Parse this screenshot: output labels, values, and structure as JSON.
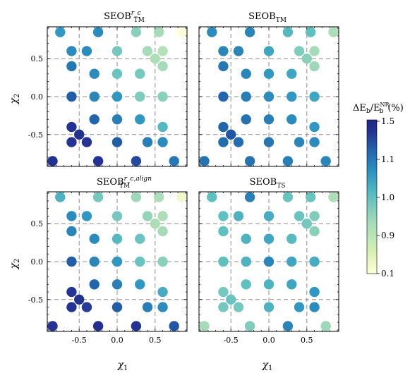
{
  "chart_data": [
    {
      "type": "scatter",
      "title": "SEOB^{r_c}_{TM}",
      "title_main": "SEOB",
      "title_sup": "r_c",
      "title_sub": "TM",
      "xlabel": "",
      "ylabel": "χ₂",
      "xlim": [
        -0.92,
        0.92
      ],
      "ylim": [
        -0.92,
        0.92
      ],
      "grid": true,
      "color_scale": "ΔE_b/E_b^NR (%)",
      "points": [
        {
          "x": -0.75,
          "y": 0.85,
          "v": 1.1
        },
        {
          "x": -0.25,
          "y": 0.85,
          "v": 1.12
        },
        {
          "x": 0.25,
          "y": 0.85,
          "v": 1.0
        },
        {
          "x": 0.55,
          "y": 0.85,
          "v": 0.97
        },
        {
          "x": 0.85,
          "y": 0.85,
          "v": 0.12
        },
        {
          "x": -0.6,
          "y": 0.6,
          "v": 1.12
        },
        {
          "x": -0.4,
          "y": 0.6,
          "v": 1.12
        },
        {
          "x": 0.0,
          "y": 0.6,
          "v": 1.02
        },
        {
          "x": 0.4,
          "y": 0.6,
          "v": 0.97
        },
        {
          "x": 0.6,
          "y": 0.6,
          "v": 0.95
        },
        {
          "x": -0.6,
          "y": 0.4,
          "v": 1.15
        },
        {
          "x": 0.5,
          "y": 0.5,
          "v": 0.96
        },
        {
          "x": 0.6,
          "y": 0.4,
          "v": 0.97
        },
        {
          "x": -0.3,
          "y": 0.3,
          "v": 1.12
        },
        {
          "x": 0.0,
          "y": 0.3,
          "v": 1.03
        },
        {
          "x": 0.3,
          "y": 0.3,
          "v": 1.02
        },
        {
          "x": -0.6,
          "y": 0.0,
          "v": 1.2
        },
        {
          "x": -0.3,
          "y": 0.0,
          "v": 1.13
        },
        {
          "x": 0.0,
          "y": 0.0,
          "v": 1.1
        },
        {
          "x": 0.3,
          "y": 0.0,
          "v": 1.01
        },
        {
          "x": 0.6,
          "y": 0.0,
          "v": 1.0
        },
        {
          "x": -0.3,
          "y": -0.3,
          "v": 1.18
        },
        {
          "x": 0.0,
          "y": -0.3,
          "v": 1.14
        },
        {
          "x": 0.3,
          "y": -0.3,
          "v": 1.1
        },
        {
          "x": 0.6,
          "y": -0.4,
          "v": 1.05
        },
        {
          "x": -0.6,
          "y": -0.4,
          "v": 1.32
        },
        {
          "x": -0.5,
          "y": -0.5,
          "v": 1.35
        },
        {
          "x": 0.6,
          "y": -0.6,
          "v": 1.12
        },
        {
          "x": -0.6,
          "y": -0.6,
          "v": 1.3
        },
        {
          "x": -0.4,
          "y": -0.6,
          "v": 1.3
        },
        {
          "x": 0.0,
          "y": -0.6,
          "v": 1.2
        },
        {
          "x": 0.4,
          "y": -0.6,
          "v": 1.14
        },
        {
          "x": -0.85,
          "y": -0.85,
          "v": 1.35
        },
        {
          "x": -0.25,
          "y": -0.85,
          "v": 1.32
        },
        {
          "x": 0.25,
          "y": -0.85,
          "v": 1.25
        },
        {
          "x": 0.75,
          "y": -0.85,
          "v": 1.15
        }
      ]
    },
    {
      "type": "scatter",
      "title": "SEOB_{TM}",
      "title_main": "SEOB",
      "title_sup": "",
      "title_sub": "TM",
      "xlabel": "",
      "ylabel": "",
      "xlim": [
        -0.92,
        0.92
      ],
      "ylim": [
        -0.92,
        0.92
      ],
      "grid": true,
      "points": [
        {
          "x": -0.75,
          "y": 0.85,
          "v": 1.12
        },
        {
          "x": -0.25,
          "y": 0.85,
          "v": 1.13
        },
        {
          "x": 0.25,
          "y": 0.85,
          "v": 1.05
        },
        {
          "x": 0.55,
          "y": 0.85,
          "v": 1.04
        },
        {
          "x": 0.85,
          "y": 0.85,
          "v": 0.96
        },
        {
          "x": -0.6,
          "y": 0.6,
          "v": 1.13
        },
        {
          "x": -0.4,
          "y": 0.6,
          "v": 1.13
        },
        {
          "x": 0.0,
          "y": 0.6,
          "v": 1.08
        },
        {
          "x": 0.4,
          "y": 0.6,
          "v": 1.01
        },
        {
          "x": 0.6,
          "y": 0.6,
          "v": 0.97
        },
        {
          "x": -0.6,
          "y": 0.4,
          "v": 1.15
        },
        {
          "x": 0.5,
          "y": 0.5,
          "v": 1.0
        },
        {
          "x": 0.6,
          "y": 0.4,
          "v": 0.98
        },
        {
          "x": -0.3,
          "y": 0.3,
          "v": 1.13
        },
        {
          "x": 0.0,
          "y": 0.3,
          "v": 1.1
        },
        {
          "x": 0.3,
          "y": 0.3,
          "v": 1.08
        },
        {
          "x": -0.6,
          "y": 0.0,
          "v": 1.18
        },
        {
          "x": -0.3,
          "y": 0.0,
          "v": 1.14
        },
        {
          "x": 0.0,
          "y": 0.0,
          "v": 1.12
        },
        {
          "x": 0.3,
          "y": 0.0,
          "v": 1.1
        },
        {
          "x": 0.6,
          "y": 0.0,
          "v": 1.08
        },
        {
          "x": -0.3,
          "y": -0.3,
          "v": 1.16
        },
        {
          "x": 0.0,
          "y": -0.3,
          "v": 1.14
        },
        {
          "x": 0.3,
          "y": -0.3,
          "v": 1.12
        },
        {
          "x": 0.6,
          "y": -0.4,
          "v": 1.1
        },
        {
          "x": -0.6,
          "y": -0.4,
          "v": 1.18
        },
        {
          "x": -0.5,
          "y": -0.5,
          "v": 1.22
        },
        {
          "x": 0.6,
          "y": -0.6,
          "v": 1.12
        },
        {
          "x": -0.6,
          "y": -0.6,
          "v": 1.17
        },
        {
          "x": -0.4,
          "y": -0.6,
          "v": 1.17
        },
        {
          "x": 0.0,
          "y": -0.6,
          "v": 1.15
        },
        {
          "x": 0.4,
          "y": -0.6,
          "v": 1.13
        },
        {
          "x": -0.85,
          "y": -0.85,
          "v": 1.16
        },
        {
          "x": -0.25,
          "y": -0.85,
          "v": 1.16
        },
        {
          "x": 0.25,
          "y": -0.85,
          "v": 1.14
        },
        {
          "x": 0.75,
          "y": -0.85,
          "v": 1.13
        }
      ]
    },
    {
      "type": "scatter",
      "title": "SEOB^{r_c,align}_{TM}",
      "title_main": "SEOB",
      "title_sup": "r_c,align",
      "title_sub": "TM",
      "xlabel": "χ₁",
      "ylabel": "χ₂",
      "xlim": [
        -0.92,
        0.92
      ],
      "ylim": [
        -0.92,
        0.92
      ],
      "grid": true,
      "points": [
        {
          "x": -0.75,
          "y": 0.85,
          "v": 1.06
        },
        {
          "x": -0.25,
          "y": 0.85,
          "v": 1.02
        },
        {
          "x": 0.25,
          "y": 0.85,
          "v": 0.98
        },
        {
          "x": 0.55,
          "y": 0.85,
          "v": 0.96
        },
        {
          "x": 0.85,
          "y": 0.85,
          "v": 0.4
        },
        {
          "x": -0.6,
          "y": 0.6,
          "v": 1.12
        },
        {
          "x": -0.4,
          "y": 0.6,
          "v": 1.1
        },
        {
          "x": 0.0,
          "y": 0.6,
          "v": 1.02
        },
        {
          "x": 0.4,
          "y": 0.6,
          "v": 0.99
        },
        {
          "x": 0.6,
          "y": 0.6,
          "v": 0.96
        },
        {
          "x": -0.6,
          "y": 0.4,
          "v": 1.13
        },
        {
          "x": 0.5,
          "y": 0.5,
          "v": 0.96
        },
        {
          "x": 0.6,
          "y": 0.4,
          "v": 0.97
        },
        {
          "x": -0.3,
          "y": 0.3,
          "v": 1.12
        },
        {
          "x": 0.0,
          "y": 0.3,
          "v": 1.05
        },
        {
          "x": 0.3,
          "y": 0.3,
          "v": 1.03
        },
        {
          "x": -0.6,
          "y": 0.0,
          "v": 1.2
        },
        {
          "x": -0.3,
          "y": 0.0,
          "v": 1.13
        },
        {
          "x": 0.0,
          "y": 0.0,
          "v": 1.1
        },
        {
          "x": 0.3,
          "y": 0.0,
          "v": 1.03
        },
        {
          "x": 0.6,
          "y": 0.0,
          "v": 1.0
        },
        {
          "x": -0.3,
          "y": -0.3,
          "v": 1.18
        },
        {
          "x": 0.0,
          "y": -0.3,
          "v": 1.14
        },
        {
          "x": 0.3,
          "y": -0.3,
          "v": 1.1
        },
        {
          "x": 0.6,
          "y": -0.4,
          "v": 1.07
        },
        {
          "x": -0.6,
          "y": -0.4,
          "v": 1.3
        },
        {
          "x": -0.5,
          "y": -0.5,
          "v": 1.35
        },
        {
          "x": 0.6,
          "y": -0.6,
          "v": 1.12
        },
        {
          "x": -0.6,
          "y": -0.6,
          "v": 1.3
        },
        {
          "x": -0.4,
          "y": -0.6,
          "v": 1.28
        },
        {
          "x": 0.0,
          "y": -0.6,
          "v": 1.2
        },
        {
          "x": 0.4,
          "y": -0.6,
          "v": 1.14
        },
        {
          "x": -0.85,
          "y": -0.85,
          "v": 1.32
        },
        {
          "x": -0.25,
          "y": -0.85,
          "v": 1.38
        },
        {
          "x": 0.25,
          "y": -0.85,
          "v": 1.32
        },
        {
          "x": 0.75,
          "y": -0.85,
          "v": 1.22
        }
      ]
    },
    {
      "type": "scatter",
      "title": "SEOB_{TS}",
      "title_main": "SEOB",
      "title_sup": "",
      "title_sub": "TS",
      "xlabel": "χ₁",
      "ylabel": "",
      "xlim": [
        -0.92,
        0.92
      ],
      "ylim": [
        -0.92,
        0.92
      ],
      "grid": true,
      "points": [
        {
          "x": -0.75,
          "y": 0.85,
          "v": 1.04
        },
        {
          "x": -0.25,
          "y": 0.85,
          "v": 1.14
        },
        {
          "x": 0.25,
          "y": 0.85,
          "v": 1.03
        },
        {
          "x": 0.55,
          "y": 0.85,
          "v": 1.03
        },
        {
          "x": 0.85,
          "y": 0.85,
          "v": 0.96
        },
        {
          "x": -0.6,
          "y": 0.6,
          "v": 1.04
        },
        {
          "x": -0.4,
          "y": 0.6,
          "v": 1.06
        },
        {
          "x": 0.0,
          "y": 0.6,
          "v": 1.07
        },
        {
          "x": 0.4,
          "y": 0.6,
          "v": 1.03
        },
        {
          "x": 0.6,
          "y": 0.6,
          "v": 1.01
        },
        {
          "x": -0.6,
          "y": 0.4,
          "v": 1.04
        },
        {
          "x": 0.5,
          "y": 0.5,
          "v": 1.02
        },
        {
          "x": 0.6,
          "y": 0.4,
          "v": 1.0
        },
        {
          "x": -0.3,
          "y": 0.3,
          "v": 1.06
        },
        {
          "x": 0.0,
          "y": 0.3,
          "v": 1.08
        },
        {
          "x": 0.3,
          "y": 0.3,
          "v": 1.05
        },
        {
          "x": -0.6,
          "y": 0.0,
          "v": 1.04
        },
        {
          "x": -0.3,
          "y": 0.0,
          "v": 1.06
        },
        {
          "x": 0.0,
          "y": 0.0,
          "v": 1.13
        },
        {
          "x": 0.3,
          "y": 0.0,
          "v": 1.08
        },
        {
          "x": 0.6,
          "y": 0.0,
          "v": 1.07
        },
        {
          "x": -0.3,
          "y": -0.3,
          "v": 1.04
        },
        {
          "x": 0.0,
          "y": -0.3,
          "v": 1.06
        },
        {
          "x": 0.3,
          "y": -0.3,
          "v": 1.08
        },
        {
          "x": 0.6,
          "y": -0.4,
          "v": 1.1
        },
        {
          "x": -0.6,
          "y": -0.4,
          "v": 1.02
        },
        {
          "x": -0.5,
          "y": -0.5,
          "v": 1.03
        },
        {
          "x": 0.6,
          "y": -0.6,
          "v": 1.12
        },
        {
          "x": -0.6,
          "y": -0.6,
          "v": 1.02
        },
        {
          "x": -0.4,
          "y": -0.6,
          "v": 1.02
        },
        {
          "x": 0.0,
          "y": -0.6,
          "v": 1.06
        },
        {
          "x": 0.4,
          "y": -0.6,
          "v": 1.1
        },
        {
          "x": -0.85,
          "y": -0.85,
          "v": 0.97
        },
        {
          "x": -0.25,
          "y": -0.85,
          "v": 1.01
        },
        {
          "x": 0.25,
          "y": -0.85,
          "v": 1.13
        },
        {
          "x": 0.75,
          "y": -0.85,
          "v": 0.98
        }
      ]
    }
  ],
  "ticks": {
    "x": [
      "-0.5",
      "0.0",
      "0.5"
    ],
    "y": [
      "0.5",
      "0.0",
      "-0.5"
    ]
  },
  "colorbar": {
    "title_pre": "ΔE",
    "title_sub1": "b",
    "title_slash": "/E",
    "title_sup2": "NR",
    "title_sub2": "b",
    "title_post": "(%)",
    "tick_labels": [
      "1.5",
      "1.1",
      "1.0",
      "0.9",
      "0.1"
    ],
    "colors": [
      "#ffffd9",
      "#d8f0b4",
      "#9fd8b9",
      "#5ec0c0",
      "#2f97c1",
      "#2166ac",
      "#253494",
      "#1a2a86"
    ]
  },
  "axes": {
    "x_label": "χ",
    "x_label_sub": "1",
    "y_label": "χ",
    "y_label_sub": "2"
  }
}
